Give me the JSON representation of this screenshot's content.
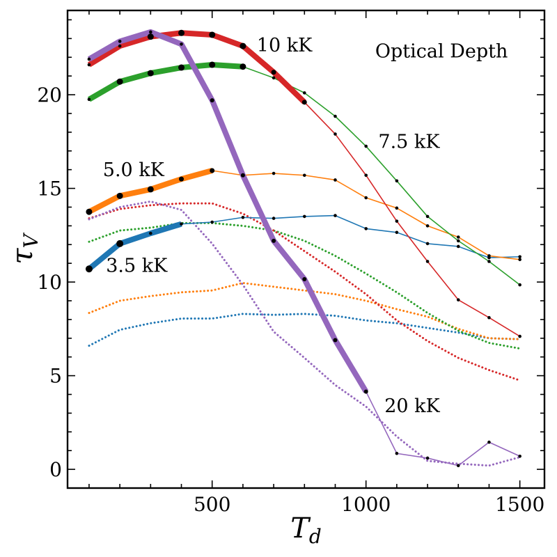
{
  "chart_data": {
    "type": "line",
    "title": "Optical Depth",
    "xlabel": "T",
    "xlabel_sub": "d",
    "ylabel": "τ",
    "ylabel_sub": "V",
    "xlim": [
      30,
      1580
    ],
    "ylim": [
      -1,
      24.5
    ],
    "xticks": [
      500,
      1000,
      1500
    ],
    "xtick_labels": [
      "500",
      "1000",
      "1500"
    ],
    "yticks": [
      0,
      5,
      10,
      15,
      20
    ],
    "ytick_labels": [
      "0",
      "5",
      "10",
      "15",
      "20"
    ],
    "x": [
      100,
      200,
      300,
      400,
      500,
      600,
      700,
      800,
      900,
      1000,
      1100,
      1200,
      1300,
      1400,
      1500
    ],
    "series": [
      {
        "name": "3.5 kK",
        "color": "#1f77b4",
        "values": [
          10.7,
          12.05,
          12.6,
          13.1,
          13.2,
          13.45,
          13.4,
          13.5,
          13.55,
          12.85,
          12.65,
          12.05,
          11.9,
          11.3,
          11.35
        ],
        "thick_until": 3,
        "marker_until": 4
      },
      {
        "name": "5.0 kK",
        "color": "#ff7f0e",
        "values": [
          13.75,
          14.6,
          14.95,
          15.5,
          15.95,
          15.7,
          15.8,
          15.7,
          15.45,
          14.5,
          13.95,
          13.0,
          12.4,
          11.4,
          11.2
        ],
        "thick_until": 4,
        "marker_until": 5
      },
      {
        "name": "7.5 kK",
        "color": "#2ca02c",
        "values": [
          19.75,
          20.7,
          21.15,
          21.45,
          21.6,
          21.5,
          20.9,
          20.1,
          18.85,
          17.25,
          15.4,
          13.5,
          12.2,
          11.1,
          9.85
        ],
        "thick_until": 5,
        "marker_until": 6
      },
      {
        "name": "10 kK",
        "color": "#d62728",
        "values": [
          21.6,
          22.6,
          23.1,
          23.3,
          23.2,
          22.6,
          21.2,
          19.6,
          17.9,
          15.7,
          13.25,
          11.1,
          9.05,
          8.1,
          7.1
        ],
        "thick_until": 7,
        "marker_until": 7
      },
      {
        "name": "20 kK",
        "color": "#9467bd",
        "values": [
          21.9,
          22.85,
          23.35,
          22.7,
          19.7,
          15.7,
          12.2,
          10.15,
          6.9,
          4.15,
          0.85,
          0.6,
          0.2,
          1.45,
          0.7
        ],
        "thick_until": 9,
        "marker_until": 3
      }
    ],
    "dotted_series": [
      {
        "name": "3.5 kK",
        "color": "#1f77b4",
        "values": [
          6.6,
          7.45,
          7.8,
          8.05,
          8.05,
          8.3,
          8.25,
          8.3,
          8.2,
          7.95,
          7.8,
          7.55,
          7.3,
          7.0,
          6.95
        ]
      },
      {
        "name": "5.0 kK",
        "color": "#ff7f0e",
        "values": [
          8.35,
          9.0,
          9.25,
          9.45,
          9.55,
          9.95,
          9.75,
          9.55,
          9.35,
          9.0,
          8.55,
          8.15,
          7.5,
          7.0,
          6.95
        ]
      },
      {
        "name": "7.5 kK",
        "color": "#2ca02c",
        "values": [
          12.15,
          12.75,
          12.9,
          13.15,
          13.15,
          13.0,
          12.75,
          12.2,
          11.4,
          10.45,
          9.45,
          8.35,
          7.4,
          6.75,
          6.45
        ]
      },
      {
        "name": "10 kK",
        "color": "#d62728",
        "values": [
          13.4,
          13.9,
          14.1,
          14.2,
          14.2,
          13.65,
          12.75,
          11.65,
          10.55,
          9.35,
          7.95,
          6.85,
          5.95,
          5.3,
          4.75
        ]
      },
      {
        "name": "20 kK",
        "color": "#9467bd",
        "values": [
          13.35,
          14.0,
          14.3,
          13.85,
          12.05,
          9.85,
          7.35,
          5.95,
          4.5,
          3.35,
          1.75,
          0.45,
          0.3,
          0.2,
          0.65
        ]
      }
    ],
    "annotations": [
      {
        "text": "Optical Depth",
        "x": 1030,
        "y": 22.0
      },
      {
        "text": "10 kK",
        "x": 645,
        "y": 22.3
      },
      {
        "text": "7.5 kK",
        "x": 1040,
        "y": 17.15
      },
      {
        "text": "5.0 kK",
        "x": 145,
        "y": 15.65
      },
      {
        "text": "3.5 kK",
        "x": 155,
        "y": 10.55
      },
      {
        "text": "20 kK",
        "x": 1060,
        "y": 3.05
      }
    ],
    "grid": false,
    "legend": "none"
  }
}
